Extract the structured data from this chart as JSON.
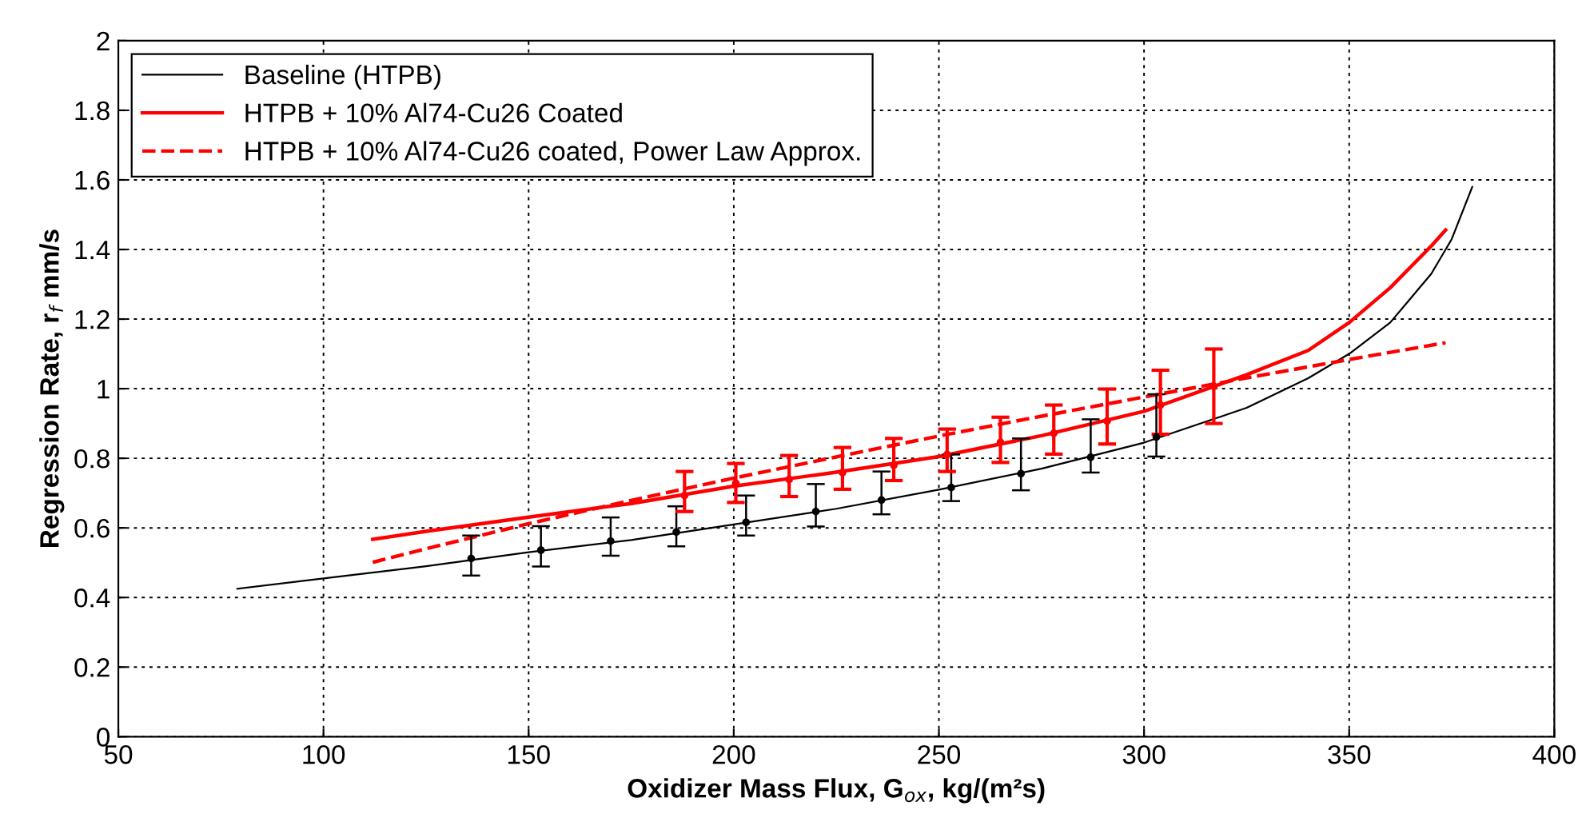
{
  "chart_data": {
    "type": "line",
    "xlabel": "Oxidizer Mass Flux, G$_{ox}$, kg/(m²s)",
    "ylabel": "Regression Rate, r$_{f}$ mm/s",
    "xlim": [
      50,
      400
    ],
    "xticks": [
      50,
      100,
      150,
      200,
      250,
      300,
      350,
      400
    ],
    "ylim": [
      0,
      2
    ],
    "yticks": [
      0,
      0.2,
      0.4,
      0.6,
      0.8,
      1,
      1.2,
      1.4,
      1.6,
      1.8,
      2
    ],
    "grid": true,
    "legend": "top left",
    "series": [
      {
        "name": "Baseline (HTPB)",
        "color": "#000000",
        "line_style": "solid",
        "x": [
          79,
          100,
          125,
          150,
          175,
          200,
          225,
          250,
          275,
          300,
          325,
          340,
          350,
          360,
          365,
          370,
          375,
          380
        ],
        "values": [
          0.425,
          0.455,
          0.49,
          0.53,
          0.565,
          0.61,
          0.655,
          0.71,
          0.77,
          0.845,
          0.945,
          1.03,
          1.1,
          1.19,
          1.26,
          1.33,
          1.43,
          1.58
        ]
      },
      {
        "name": "HTPB + 10% Al74-Cu26 Coated",
        "color": "#ff0000",
        "line_style": "solid",
        "x": [
          112,
          125,
          150,
          175,
          200,
          225,
          250,
          275,
          300,
          325,
          340,
          350,
          360,
          365,
          370,
          373.5
        ],
        "values": [
          0.567,
          0.59,
          0.631,
          0.67,
          0.72,
          0.76,
          0.805,
          0.865,
          0.935,
          1.04,
          1.11,
          1.19,
          1.29,
          1.35,
          1.41,
          1.456
        ]
      },
      {
        "name": "HTPB + 10% Al74-Cu26 coated, Power Law Approx.",
        "color": "#ff0000",
        "line_style": "dashed",
        "x": [
          112,
          125,
          150,
          175,
          200,
          225,
          250,
          275,
          300,
          325,
          350,
          373.5
        ],
        "values": [
          0.501,
          0.54,
          0.612,
          0.679,
          0.743,
          0.804,
          0.864,
          0.921,
          0.976,
          1.031,
          1.084,
          1.132
        ]
      },
      {
        "type": "scatter",
        "marker": "circle",
        "color": "#000000",
        "x": [
          136,
          153,
          170,
          186,
          203,
          220,
          236,
          253,
          270,
          287,
          303
        ],
        "values": [
          0.512,
          0.536,
          0.562,
          0.588,
          0.616,
          0.647,
          0.68,
          0.716,
          0.756,
          0.803,
          0.861
        ],
        "errors": [
          [
            0.463,
            0.578
          ],
          [
            0.489,
            0.605
          ],
          [
            0.52,
            0.63
          ],
          [
            0.547,
            0.662
          ],
          [
            0.578,
            0.693
          ],
          [
            0.604,
            0.726
          ],
          [
            0.639,
            0.762
          ],
          [
            0.677,
            0.811
          ],
          [
            0.708,
            0.857
          ],
          [
            0.759,
            0.912
          ],
          [
            0.805,
            0.984
          ]
        ]
      },
      {
        "type": "scatter",
        "marker": "circle",
        "color": "#ff0000",
        "x": [
          188,
          200.5,
          213.5,
          226.5,
          239,
          252,
          265,
          278,
          291,
          304,
          317
        ],
        "values": [
          0.693,
          0.728,
          0.739,
          0.759,
          0.78,
          0.811,
          0.846,
          0.872,
          0.907,
          0.953,
          1.007
        ],
        "errors": [
          [
            0.647,
            0.762
          ],
          [
            0.673,
            0.785
          ],
          [
            0.69,
            0.808
          ],
          [
            0.711,
            0.831
          ],
          [
            0.736,
            0.857
          ],
          [
            0.762,
            0.884
          ],
          [
            0.788,
            0.918
          ],
          [
            0.812,
            0.953
          ],
          [
            0.841,
            0.999
          ],
          [
            0.869,
            1.053
          ],
          [
            0.9,
            1.114
          ]
        ]
      }
    ]
  }
}
